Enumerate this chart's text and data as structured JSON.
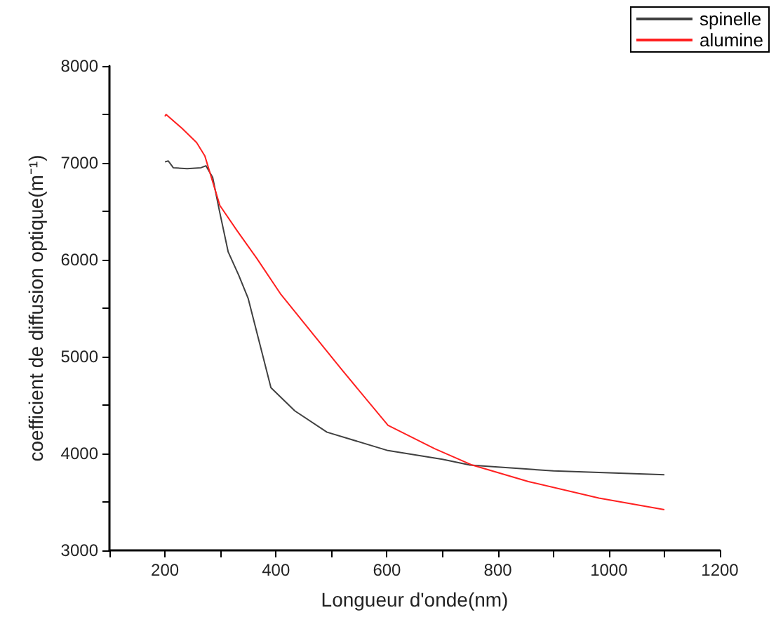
{
  "chart_data": {
    "type": "line",
    "xlabel": "Longueur d'onde(nm)",
    "ylabel": "coefficient de diffusion optique(m⁻¹)",
    "xlim": [
      100,
      1200
    ],
    "xticks": [
      {
        "value": 100,
        "label": null
      },
      200,
      {
        "value": 300,
        "label": null
      },
      400,
      {
        "value": 500,
        "label": null
      },
      600,
      {
        "value": 700,
        "label": null
      },
      800,
      {
        "value": 900,
        "label": null
      },
      1000,
      {
        "value": 1100,
        "label": null
      },
      1200
    ],
    "ylim": [
      3000,
      8000
    ],
    "yticks": [
      3000,
      {
        "value": 3500,
        "label": null
      },
      4000,
      {
        "value": 4500,
        "label": null
      },
      5000,
      {
        "value": 5500,
        "label": null
      },
      6000,
      {
        "value": 6500,
        "label": null
      },
      7000,
      {
        "value": 7500,
        "label": null
      },
      8000
    ],
    "legend": "top right",
    "grid": false,
    "marker": "none",
    "line_style": "solid",
    "series": [
      {
        "name": "spinelle",
        "color": "#404040",
        "x": [
          200,
          206,
          215,
          240,
          265,
          274,
          286,
          298,
          314,
          333,
          350,
          391,
          434,
          492,
          602,
          700,
          750,
          800,
          900,
          1000,
          1100
        ],
        "values": [
          7010,
          7020,
          6950,
          6940,
          6950,
          6970,
          6850,
          6510,
          6080,
          5840,
          5600,
          4680,
          4440,
          4220,
          4030,
          3940,
          3880,
          3860,
          3820,
          3800,
          3780
        ]
      },
      {
        "name": "alumine",
        "color": "#ff2020",
        "x": [
          200,
          202,
          230,
          257,
          272,
          299,
          330,
          366,
          408,
          518,
          602,
          686,
          754,
          855,
          982,
          1100
        ],
        "values": [
          7480,
          7500,
          7360,
          7210,
          7070,
          6560,
          6300,
          6010,
          5650,
          4870,
          4290,
          4050,
          3880,
          3710,
          3540,
          3420
        ]
      }
    ]
  }
}
